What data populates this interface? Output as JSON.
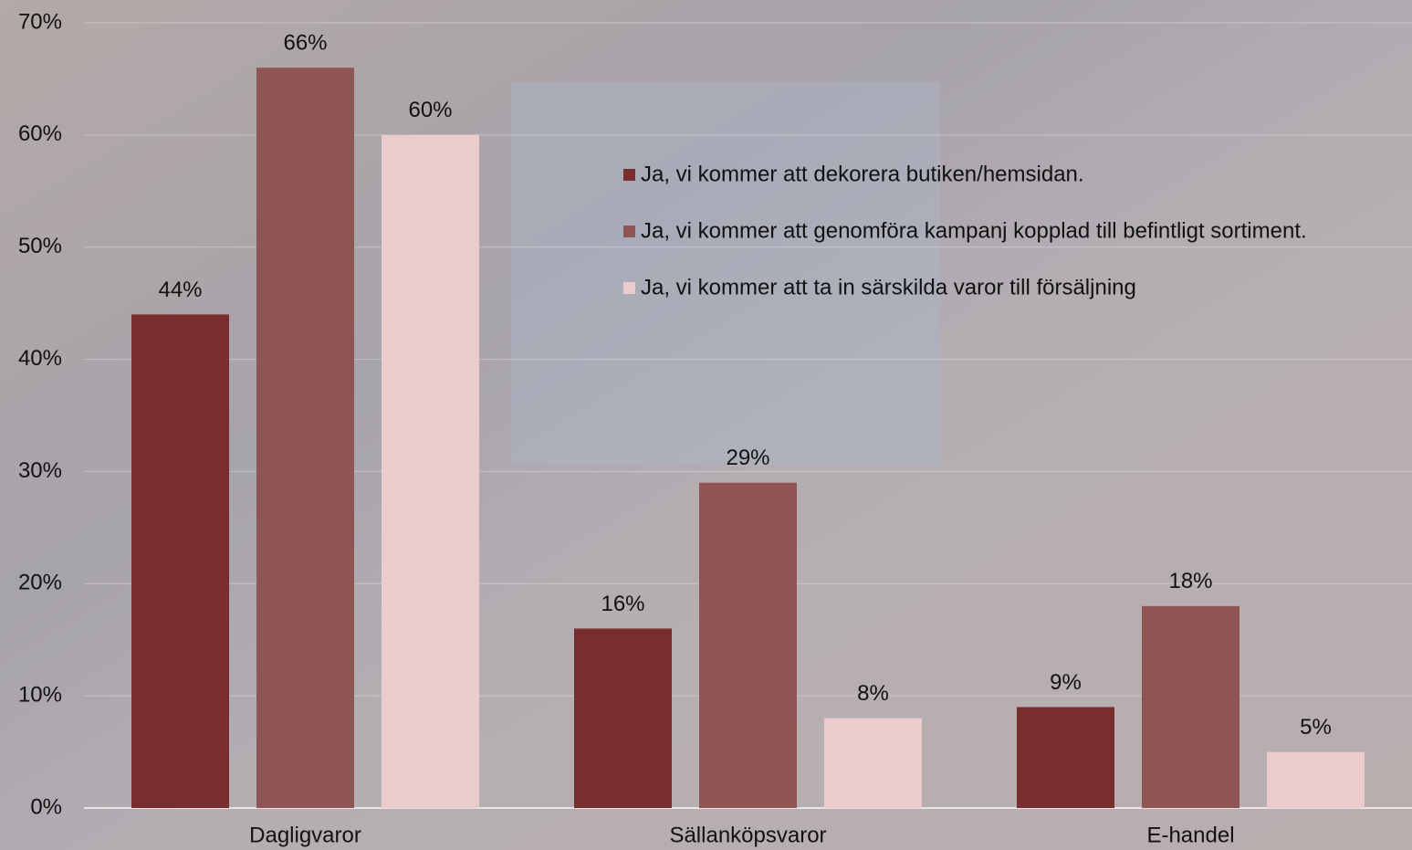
{
  "chart_data": {
    "type": "bar",
    "categories": [
      "Dagligvaror",
      "Sällanköpsvaror",
      "E-handel"
    ],
    "series": [
      {
        "name": "Ja, vi kommer att dekorera butiken/hemsidan.",
        "color": "#782e2e",
        "values": [
          44,
          16,
          9
        ],
        "value_labels": [
          "44%",
          "16%",
          "9%"
        ]
      },
      {
        "name": "Ja, vi kommer att genomföra kampanj kopplad till befintligt sortiment.",
        "color": "#8f5555",
        "values": [
          66,
          29,
          18
        ],
        "value_labels": [
          "66%",
          "29%",
          "18%"
        ]
      },
      {
        "name": "Ja, vi kommer att ta in särskilda varor till försäljning",
        "color": "#ebcbcc",
        "values": [
          60,
          8,
          5
        ],
        "value_labels": [
          "60%",
          "8%",
          "5%"
        ]
      }
    ],
    "ylim": [
      0,
      70
    ],
    "yticks": [
      {
        "value": 0,
        "label": "0%"
      },
      {
        "value": 10,
        "label": "10%"
      },
      {
        "value": 20,
        "label": "20%"
      },
      {
        "value": 30,
        "label": "30%"
      },
      {
        "value": 40,
        "label": "40%"
      },
      {
        "value": 50,
        "label": "50%"
      },
      {
        "value": 60,
        "label": "60%"
      },
      {
        "value": 70,
        "label": "70%"
      }
    ],
    "grid": true,
    "legend": "top-right"
  }
}
